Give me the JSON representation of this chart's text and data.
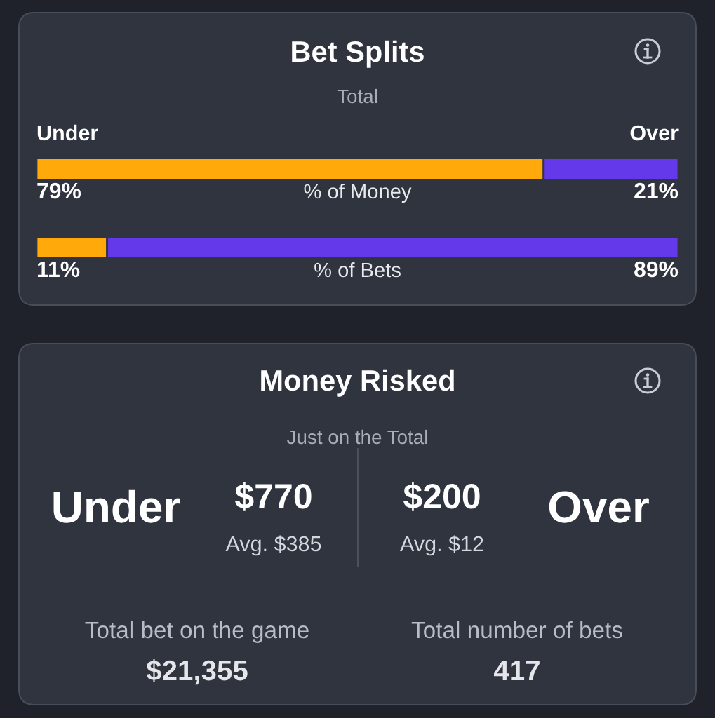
{
  "chart_data": [
    {
      "type": "bar",
      "orientation": "horizontal",
      "stacked": true,
      "title": "Bet Splits",
      "subtitle": "Total",
      "categories": [
        "% of Money",
        "% of Bets"
      ],
      "series": [
        {
          "name": "Under",
          "color": "#ffaa0a",
          "values": [
            79,
            11
          ],
          "value_labels": [
            "79%",
            "11%"
          ]
        },
        {
          "name": "Over",
          "color": "#6339ea",
          "values": [
            21,
            89
          ],
          "value_labels": [
            "21%",
            "89%"
          ]
        }
      ],
      "xlim": [
        0,
        100
      ],
      "tick_labels": false
    },
    {
      "type": "other",
      "title": "Money Risked",
      "subtitle": "Just on the Total",
      "annotations": [
        "Under",
        "$770",
        "Avg. $385",
        "$200",
        "Avg. $12",
        "Over",
        "Total bet on the game",
        "$21,355",
        "Total number of bets",
        "417"
      ]
    }
  ]
}
